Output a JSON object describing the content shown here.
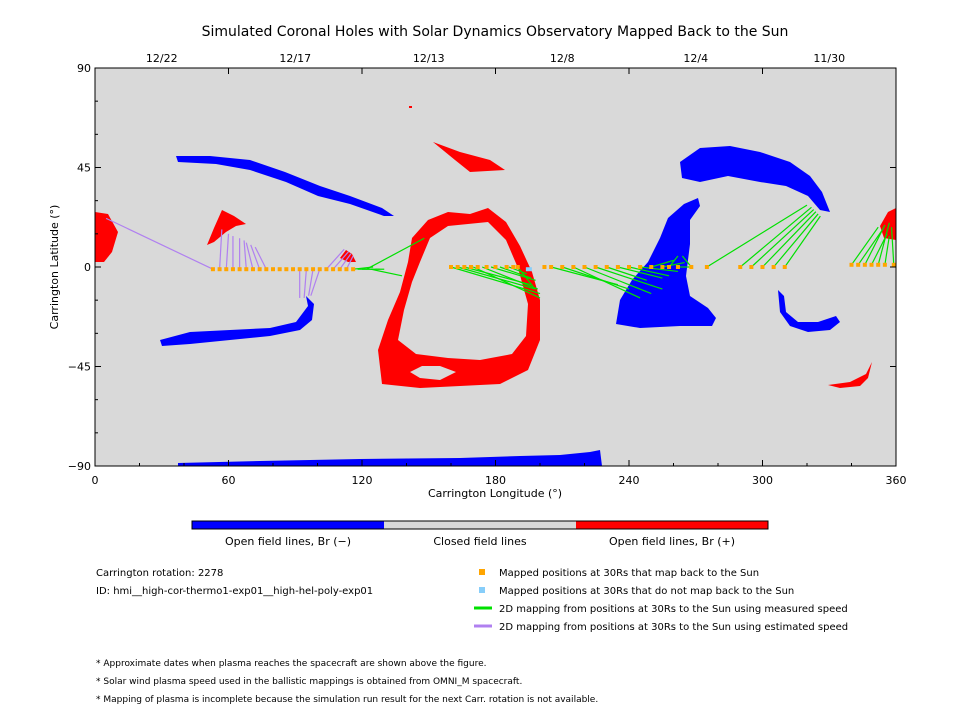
{
  "chart_data": {
    "type": "scatter",
    "title": "Simulated Coronal Holes with Solar Dynamics Observatory Mapped Back to the Sun",
    "xlabel": "Carrington Longitude (°)",
    "ylabel": "Carrington Latitude (°)",
    "xlim": [
      0,
      360
    ],
    "ylim": [
      -90,
      90
    ],
    "xticks": [
      "0",
      "60",
      "120",
      "180",
      "240",
      "300",
      "360"
    ],
    "yticks": [
      "90",
      "45",
      "0",
      "−45",
      "−90"
    ],
    "top_axis_dates": [
      {
        "label": "12/22",
        "lon": 30
      },
      {
        "label": "12/17",
        "lon": 90
      },
      {
        "label": "12/13",
        "lon": 150
      },
      {
        "label": "12/8",
        "lon": 210
      },
      {
        "label": "12/4",
        "lon": 270
      },
      {
        "label": "11/30",
        "lon": 330
      }
    ],
    "colors": {
      "open_negative": "#0000ff",
      "closed": "#d9d9d9",
      "open_positive": "#ff0000",
      "mapped": "#ffa500",
      "not_mapped": "#87cefa",
      "measured": "#00e000",
      "estimated": "#b080f0"
    },
    "colorbar_labels": [
      "Open field lines, Br (−)",
      "Closed field lines",
      "Open field lines, Br (+)"
    ],
    "mapped_points": [
      [
        53,
        -1
      ],
      [
        56,
        -1
      ],
      [
        59,
        -1
      ],
      [
        62,
        -1
      ],
      [
        65,
        -1
      ],
      [
        68,
        -1
      ],
      [
        71,
        -1
      ],
      [
        74,
        -1
      ],
      [
        77,
        -1
      ],
      [
        80,
        -1
      ],
      [
        83,
        -1
      ],
      [
        86,
        -1
      ],
      [
        89,
        -1
      ],
      [
        92,
        -1
      ],
      [
        95,
        -1
      ],
      [
        98,
        -1
      ],
      [
        101,
        -1
      ],
      [
        104,
        -1
      ],
      [
        107,
        -1
      ],
      [
        110,
        -1
      ],
      [
        113,
        -1
      ],
      [
        116,
        -1
      ],
      [
        160,
        0
      ],
      [
        163,
        0
      ],
      [
        166,
        0
      ],
      [
        169,
        0
      ],
      [
        172,
        0
      ],
      [
        176,
        0
      ],
      [
        180,
        0
      ],
      [
        185,
        0
      ],
      [
        188,
        0
      ],
      [
        190,
        0
      ],
      [
        202,
        0
      ],
      [
        205,
        0
      ],
      [
        210,
        0
      ],
      [
        215,
        0
      ],
      [
        220,
        0
      ],
      [
        225,
        0
      ],
      [
        230,
        0
      ],
      [
        235,
        0
      ],
      [
        240,
        0
      ],
      [
        245,
        0
      ],
      [
        250,
        0
      ],
      [
        255,
        0
      ],
      [
        258,
        0
      ],
      [
        262,
        0
      ],
      [
        268,
        0
      ],
      [
        275,
        0
      ],
      [
        290,
        0
      ],
      [
        295,
        0
      ],
      [
        300,
        0
      ],
      [
        305,
        0
      ],
      [
        310,
        0
      ],
      [
        340,
        1
      ],
      [
        343,
        1
      ],
      [
        346,
        1
      ],
      [
        349,
        1
      ],
      [
        352,
        1
      ],
      [
        355,
        1
      ],
      [
        359,
        1
      ]
    ],
    "unmapped_points": [
      [
        195,
        -1
      ]
    ],
    "measured_lines": [
      [
        116,
        -1,
        125,
        0
      ],
      [
        118,
        -1,
        125,
        -1
      ],
      [
        120,
        -1,
        128,
        -1
      ],
      [
        122,
        -1,
        148,
        13
      ],
      [
        124,
        -1,
        138,
        -4
      ],
      [
        126,
        -1,
        130,
        -1
      ],
      [
        160,
        0,
        200,
        -12
      ],
      [
        163,
        0,
        198,
        -10
      ],
      [
        166,
        0,
        196,
        -8
      ],
      [
        170,
        0,
        200,
        -14
      ],
      [
        174,
        0,
        199,
        -10
      ],
      [
        178,
        0,
        198,
        -6
      ],
      [
        182,
        0,
        196,
        -5
      ],
      [
        186,
        0,
        194,
        -3
      ],
      [
        190,
        0,
        197,
        -9
      ],
      [
        205,
        0,
        235,
        -8
      ],
      [
        210,
        0,
        240,
        -10
      ],
      [
        215,
        0,
        245,
        -14
      ],
      [
        220,
        0,
        250,
        -12
      ],
      [
        225,
        0,
        255,
        -10
      ],
      [
        230,
        0,
        248,
        -6
      ],
      [
        235,
        0,
        255,
        -5
      ],
      [
        240,
        0,
        258,
        -4
      ],
      [
        245,
        0,
        262,
        -2
      ],
      [
        250,
        0,
        260,
        3
      ],
      [
        255,
        0,
        265,
        2
      ],
      [
        258,
        0,
        262,
        5
      ],
      [
        262,
        0,
        268,
        0
      ],
      [
        268,
        0,
        264,
        5
      ],
      [
        275,
        0,
        320,
        28
      ],
      [
        290,
        0,
        322,
        27
      ],
      [
        295,
        0,
        323,
        26
      ],
      [
        300,
        0,
        324,
        25
      ],
      [
        305,
        0,
        325,
        24
      ],
      [
        310,
        0,
        326,
        23
      ],
      [
        340,
        1,
        352,
        18
      ],
      [
        343,
        1,
        354,
        17
      ],
      [
        346,
        1,
        355,
        19
      ],
      [
        349,
        1,
        356,
        15
      ],
      [
        352,
        1,
        357,
        20
      ],
      [
        355,
        1,
        357,
        14
      ],
      [
        359,
        1,
        358,
        18
      ]
    ],
    "estimated_lines": [
      [
        53,
        -1,
        5,
        22
      ],
      [
        56,
        -1,
        57,
        17
      ],
      [
        59,
        -1,
        60,
        15
      ],
      [
        62,
        -1,
        62,
        14
      ],
      [
        65,
        -1,
        65,
        13
      ],
      [
        68,
        -1,
        67,
        12
      ],
      [
        71,
        -1,
        68,
        11
      ],
      [
        74,
        -1,
        70,
        10
      ],
      [
        77,
        -1,
        72,
        9
      ],
      [
        92,
        -1,
        92,
        -14
      ],
      [
        95,
        -1,
        94,
        -14
      ],
      [
        98,
        -1,
        96,
        -13
      ],
      [
        101,
        -1,
        97,
        -13
      ],
      [
        104,
        -1,
        112,
        8
      ],
      [
        107,
        -1,
        114,
        7
      ],
      [
        110,
        -1,
        115,
        6
      ],
      [
        113,
        -1,
        116,
        5
      ]
    ],
    "notes": {
      "rotation": "Carrington rotation: 2278",
      "id": "ID: hmi__high-cor-thermo1-exp01__high-hel-poly-exp01"
    },
    "legend": [
      "Mapped positions at 30Rs that map back to the Sun",
      "Mapped positions at 30Rs that do not map back to the Sun",
      "2D mapping from positions at 30Rs to the Sun using measured speed",
      "2D mapping from positions at 30Rs to the Sun using estimated speed"
    ],
    "footnotes": [
      "* Approximate dates when plasma reaches the spacecraft are shown above the figure.",
      "* Solar wind plasma speed used in the ballistic mappings is obtained from OMNI_M spacecraft.",
      "* Mapping of plasma is incomplete because the simulation run result for the next Carr. rotation is not available."
    ]
  }
}
